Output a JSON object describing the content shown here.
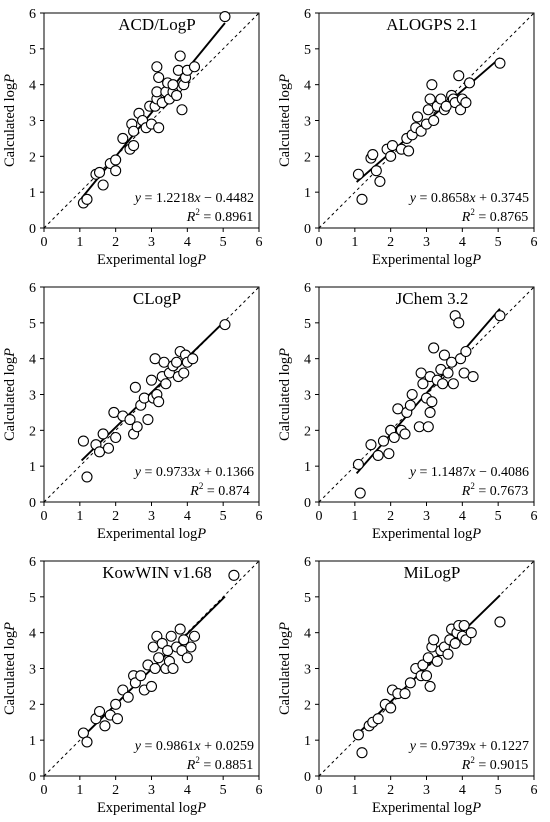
{
  "chart_data": [
    {
      "type": "scatter",
      "title": "ACD/LogP",
      "xlabel": "Experimental log",
      "ylabel": "Calculated log",
      "axis_italic_symbol": "P",
      "xlim": [
        0,
        6
      ],
      "ylim": [
        0,
        6
      ],
      "ticks": [
        "0",
        "1",
        "2",
        "3",
        "4",
        "5",
        "6"
      ],
      "equation": {
        "y": "y",
        "mid": " = 1.2218",
        "x": "x",
        "rest": " − 0.4482"
      },
      "r2": {
        "label": "R",
        "sup": "2",
        "value": " = 0.8961"
      },
      "fit": {
        "slope": 1.2218,
        "intercept": -0.4482,
        "x_range": [
          1.05,
          5.05
        ]
      },
      "points": [
        [
          1.1,
          0.7
        ],
        [
          1.2,
          0.8
        ],
        [
          1.45,
          1.5
        ],
        [
          1.55,
          1.55
        ],
        [
          1.65,
          1.2
        ],
        [
          1.85,
          1.8
        ],
        [
          2.0,
          1.9
        ],
        [
          2.0,
          1.6
        ],
        [
          2.2,
          2.5
        ],
        [
          2.4,
          2.2
        ],
        [
          2.5,
          2.3
        ],
        [
          2.45,
          2.9
        ],
        [
          2.5,
          2.7
        ],
        [
          2.65,
          3.2
        ],
        [
          2.75,
          3.0
        ],
        [
          2.85,
          2.8
        ],
        [
          2.95,
          3.4
        ],
        [
          3.0,
          2.9
        ],
        [
          3.1,
          3.4
        ],
        [
          3.15,
          3.6
        ],
        [
          3.2,
          2.8
        ],
        [
          3.15,
          3.8
        ],
        [
          3.2,
          4.2
        ],
        [
          3.15,
          4.5
        ],
        [
          3.3,
          3.5
        ],
        [
          3.4,
          3.8
        ],
        [
          3.45,
          4.05
        ],
        [
          3.5,
          3.6
        ],
        [
          3.6,
          3.8
        ],
        [
          3.6,
          4.0
        ],
        [
          3.7,
          3.7
        ],
        [
          3.75,
          4.4
        ],
        [
          3.8,
          4.8
        ],
        [
          3.85,
          3.3
        ],
        [
          3.9,
          4.0
        ],
        [
          3.95,
          4.2
        ],
        [
          4.0,
          4.4
        ],
        [
          4.2,
          4.5
        ],
        [
          5.05,
          5.9
        ]
      ]
    },
    {
      "type": "scatter",
      "title": "ALOGPS 2.1",
      "xlabel": "Experimental log",
      "ylabel": "Calculated log",
      "axis_italic_symbol": "P",
      "xlim": [
        0,
        6
      ],
      "ylim": [
        0,
        6
      ],
      "ticks": [
        "0",
        "1",
        "2",
        "3",
        "4",
        "5",
        "6"
      ],
      "equation": {
        "y": "y",
        "mid": " = 0.8658",
        "x": "x",
        "rest": " + 0.3745"
      },
      "r2": {
        "label": "R",
        "sup": "2",
        "value": " = 0.8765"
      },
      "fit": {
        "slope": 0.8658,
        "intercept": 0.3745,
        "x_range": [
          1.05,
          5.05
        ]
      },
      "points": [
        [
          1.1,
          1.5
        ],
        [
          1.2,
          0.8
        ],
        [
          1.45,
          1.95
        ],
        [
          1.5,
          2.05
        ],
        [
          1.6,
          1.6
        ],
        [
          1.7,
          1.3
        ],
        [
          1.9,
          2.2
        ],
        [
          2.0,
          2.0
        ],
        [
          2.05,
          2.3
        ],
        [
          2.3,
          2.2
        ],
        [
          2.45,
          2.5
        ],
        [
          2.5,
          2.15
        ],
        [
          2.6,
          2.6
        ],
        [
          2.7,
          2.8
        ],
        [
          2.75,
          3.1
        ],
        [
          2.85,
          2.7
        ],
        [
          3.0,
          2.9
        ],
        [
          3.05,
          3.3
        ],
        [
          3.1,
          3.6
        ],
        [
          3.15,
          4.0
        ],
        [
          3.2,
          3.0
        ],
        [
          3.3,
          3.4
        ],
        [
          3.4,
          3.6
        ],
        [
          3.5,
          3.3
        ],
        [
          3.55,
          3.4
        ],
        [
          3.7,
          3.7
        ],
        [
          3.75,
          3.6
        ],
        [
          3.8,
          3.5
        ],
        [
          3.9,
          4.25
        ],
        [
          3.95,
          3.3
        ],
        [
          4.0,
          3.6
        ],
        [
          4.1,
          3.5
        ],
        [
          4.2,
          4.05
        ],
        [
          5.05,
          4.6
        ]
      ]
    },
    {
      "type": "scatter",
      "title": "CLogP",
      "xlabel": "Experimental log",
      "ylabel": "Calculated log",
      "axis_italic_symbol": "P",
      "xlim": [
        0,
        6
      ],
      "ylim": [
        0,
        6
      ],
      "ticks": [
        "0",
        "1",
        "2",
        "3",
        "4",
        "5",
        "6"
      ],
      "equation": {
        "y": "y",
        "mid": " = 0.9733",
        "x": "x",
        "rest": " + 0.1366"
      },
      "r2": {
        "label": "R",
        "sup": "2",
        "value": " = 0.874"
      },
      "fit": {
        "slope": 0.9733,
        "intercept": 0.1366,
        "x_range": [
          1.05,
          5.05
        ]
      },
      "points": [
        [
          1.1,
          1.7
        ],
        [
          1.2,
          0.7
        ],
        [
          1.45,
          1.6
        ],
        [
          1.55,
          1.4
        ],
        [
          1.65,
          1.9
        ],
        [
          1.8,
          1.5
        ],
        [
          1.95,
          2.5
        ],
        [
          2.0,
          1.8
        ],
        [
          2.2,
          2.4
        ],
        [
          2.4,
          2.3
        ],
        [
          2.5,
          1.9
        ],
        [
          2.55,
          3.2
        ],
        [
          2.6,
          2.1
        ],
        [
          2.7,
          2.7
        ],
        [
          2.8,
          2.9
        ],
        [
          2.9,
          2.3
        ],
        [
          3.0,
          3.4
        ],
        [
          3.05,
          2.9
        ],
        [
          3.1,
          4.0
        ],
        [
          3.15,
          3.0
        ],
        [
          3.2,
          2.8
        ],
        [
          3.3,
          3.5
        ],
        [
          3.35,
          3.9
        ],
        [
          3.4,
          3.3
        ],
        [
          3.5,
          3.6
        ],
        [
          3.6,
          3.8
        ],
        [
          3.7,
          3.9
        ],
        [
          3.75,
          3.5
        ],
        [
          3.8,
          4.2
        ],
        [
          3.9,
          3.6
        ],
        [
          3.95,
          4.1
        ],
        [
          4.0,
          3.9
        ],
        [
          4.15,
          4.0
        ],
        [
          5.05,
          4.95
        ]
      ]
    },
    {
      "type": "scatter",
      "title": "JChem 3.2",
      "xlabel": "Experimental log",
      "ylabel": "Calculated log",
      "axis_italic_symbol": "P",
      "xlim": [
        0,
        6
      ],
      "ylim": [
        0,
        6
      ],
      "ticks": [
        "0",
        "1",
        "2",
        "3",
        "4",
        "5",
        "6"
      ],
      "equation": {
        "y": "y",
        "mid": " = 1.1487",
        "x": "x",
        "rest": " − 0.4086"
      },
      "r2": {
        "label": "R",
        "sup": "2",
        "value": " = 0.7673"
      },
      "fit": {
        "slope": 1.1487,
        "intercept": -0.4086,
        "x_range": [
          1.05,
          5.05
        ]
      },
      "points": [
        [
          1.1,
          1.05
        ],
        [
          1.15,
          0.25
        ],
        [
          1.45,
          1.6
        ],
        [
          1.65,
          1.3
        ],
        [
          1.8,
          1.7
        ],
        [
          1.95,
          1.35
        ],
        [
          2.0,
          2.0
        ],
        [
          2.1,
          1.8
        ],
        [
          2.2,
          2.6
        ],
        [
          2.3,
          2.0
        ],
        [
          2.4,
          1.9
        ],
        [
          2.45,
          2.5
        ],
        [
          2.55,
          2.7
        ],
        [
          2.6,
          3.0
        ],
        [
          2.8,
          2.1
        ],
        [
          2.85,
          3.6
        ],
        [
          2.9,
          3.3
        ],
        [
          3.0,
          2.9
        ],
        [
          3.05,
          2.1
        ],
        [
          3.1,
          3.5
        ],
        [
          3.1,
          2.5
        ],
        [
          3.15,
          2.8
        ],
        [
          3.2,
          4.3
        ],
        [
          3.3,
          3.4
        ],
        [
          3.4,
          3.7
        ],
        [
          3.45,
          3.3
        ],
        [
          3.5,
          4.1
        ],
        [
          3.6,
          3.6
        ],
        [
          3.7,
          3.9
        ],
        [
          3.75,
          3.3
        ],
        [
          3.8,
          5.2
        ],
        [
          3.9,
          5.0
        ],
        [
          3.95,
          4.0
        ],
        [
          4.05,
          3.6
        ],
        [
          4.1,
          4.2
        ],
        [
          4.3,
          3.5
        ],
        [
          5.05,
          5.2
        ]
      ]
    },
    {
      "type": "scatter",
      "title": "KowWIN v1.68",
      "xlabel": "Experimental log",
      "ylabel": "Calculated log",
      "axis_italic_symbol": "P",
      "xlim": [
        0,
        6
      ],
      "ylim": [
        0,
        6
      ],
      "ticks": [
        "0",
        "1",
        "2",
        "3",
        "4",
        "5",
        "6"
      ],
      "equation": {
        "y": "y",
        "mid": " = 0.9861",
        "x": "x",
        "rest": " + 0.0259"
      },
      "r2": {
        "label": "R",
        "sup": "2",
        "value": " = 0.8851"
      },
      "fit": {
        "slope": 0.9861,
        "intercept": 0.0259,
        "x_range": [
          1.05,
          5.05
        ]
      },
      "points": [
        [
          1.1,
          1.2
        ],
        [
          1.2,
          0.95
        ],
        [
          1.45,
          1.6
        ],
        [
          1.55,
          1.8
        ],
        [
          1.7,
          1.4
        ],
        [
          1.85,
          1.7
        ],
        [
          2.0,
          2.0
        ],
        [
          2.05,
          1.6
        ],
        [
          2.2,
          2.4
        ],
        [
          2.35,
          2.2
        ],
        [
          2.5,
          2.8
        ],
        [
          2.55,
          2.6
        ],
        [
          2.7,
          2.8
        ],
        [
          2.8,
          2.4
        ],
        [
          2.9,
          3.1
        ],
        [
          3.0,
          2.5
        ],
        [
          3.05,
          3.6
        ],
        [
          3.1,
          3.0
        ],
        [
          3.15,
          3.9
        ],
        [
          3.2,
          3.3
        ],
        [
          3.3,
          3.7
        ],
        [
          3.4,
          3.0
        ],
        [
          3.45,
          3.5
        ],
        [
          3.5,
          3.2
        ],
        [
          3.55,
          3.9
        ],
        [
          3.6,
          3.0
        ],
        [
          3.7,
          3.6
        ],
        [
          3.8,
          4.1
        ],
        [
          3.85,
          3.5
        ],
        [
          3.9,
          3.8
        ],
        [
          4.0,
          3.3
        ],
        [
          4.1,
          3.6
        ],
        [
          4.2,
          3.9
        ],
        [
          5.3,
          5.6
        ]
      ]
    },
    {
      "type": "scatter",
      "title": "MiLogP",
      "xlabel": "Experimental log",
      "ylabel": "Calculated log",
      "axis_italic_symbol": "P",
      "xlim": [
        0,
        6
      ],
      "ylim": [
        0,
        6
      ],
      "ticks": [
        "0",
        "1",
        "2",
        "3",
        "4",
        "5",
        "6"
      ],
      "equation": {
        "y": "y",
        "mid": " = 0.9739",
        "x": "x",
        "rest": " + 0.1227"
      },
      "r2": {
        "label": "R",
        "sup": "2",
        "value": " = 0.9015"
      },
      "fit": {
        "slope": 0.9739,
        "intercept": 0.1227,
        "x_range": [
          1.05,
          5.05
        ]
      },
      "points": [
        [
          1.1,
          1.15
        ],
        [
          1.2,
          0.65
        ],
        [
          1.4,
          1.4
        ],
        [
          1.5,
          1.5
        ],
        [
          1.65,
          1.6
        ],
        [
          1.85,
          2.0
        ],
        [
          2.0,
          1.9
        ],
        [
          2.05,
          2.4
        ],
        [
          2.2,
          2.3
        ],
        [
          2.4,
          2.3
        ],
        [
          2.55,
          2.6
        ],
        [
          2.7,
          3.0
        ],
        [
          2.85,
          2.8
        ],
        [
          2.9,
          3.1
        ],
        [
          3.0,
          2.8
        ],
        [
          3.05,
          3.3
        ],
        [
          3.1,
          2.5
        ],
        [
          3.15,
          3.6
        ],
        [
          3.2,
          3.8
        ],
        [
          3.3,
          3.2
        ],
        [
          3.4,
          3.5
        ],
        [
          3.5,
          3.6
        ],
        [
          3.6,
          3.4
        ],
        [
          3.65,
          3.8
        ],
        [
          3.7,
          4.1
        ],
        [
          3.8,
          3.7
        ],
        [
          3.85,
          4.0
        ],
        [
          3.9,
          4.2
        ],
        [
          4.0,
          3.9
        ],
        [
          4.05,
          4.2
        ],
        [
          4.1,
          3.8
        ],
        [
          4.25,
          4.0
        ],
        [
          5.05,
          4.3
        ]
      ]
    }
  ]
}
